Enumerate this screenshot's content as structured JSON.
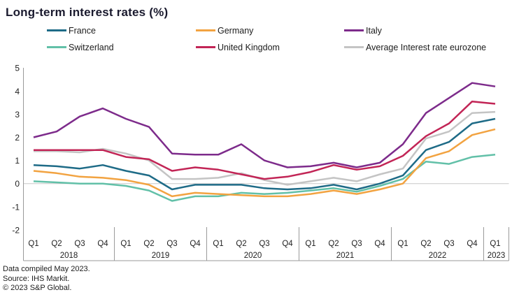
{
  "title": "Long-term interest rates (%)",
  "footer": {
    "line1": "Data compiled May 2023.",
    "line2": "Source: IHS Markit.",
    "line3": "© 2023 S&P Global."
  },
  "chart_data": {
    "type": "line",
    "title": "Long-term interest rates (%)",
    "ylim": [
      -2,
      5
    ],
    "yticks": [
      5,
      4,
      3,
      2,
      1,
      0,
      -1,
      -2
    ],
    "grid": "zero-line-only",
    "legend_position": "top",
    "x_groups": [
      {
        "year": "2018",
        "quarters": [
          "Q1",
          "Q2",
          "Q3",
          "Q4"
        ]
      },
      {
        "year": "2019",
        "quarters": [
          "Q1",
          "Q2",
          "Q3",
          "Q4"
        ]
      },
      {
        "year": "2020",
        "quarters": [
          "Q1",
          "Q2",
          "Q3",
          "Q4"
        ]
      },
      {
        "year": "2021",
        "quarters": [
          "Q1",
          "Q2",
          "Q3",
          "Q4"
        ]
      },
      {
        "year": "2022",
        "quarters": [
          "Q1",
          "Q2",
          "Q3",
          "Q4"
        ]
      },
      {
        "year": "2023",
        "quarters": [
          "Q1"
        ]
      }
    ],
    "categories": [
      "2018 Q1",
      "2018 Q2",
      "2018 Q3",
      "2018 Q4",
      "2019 Q1",
      "2019 Q2",
      "2019 Q3",
      "2019 Q4",
      "2020 Q1",
      "2020 Q2",
      "2020 Q3",
      "2020 Q4",
      "2021 Q1",
      "2021 Q2",
      "2021 Q3",
      "2021 Q4",
      "2022 Q1",
      "2022 Q2",
      "2022 Q3",
      "2022 Q4",
      "2023 Q1"
    ],
    "series": [
      {
        "name": "France",
        "color": "#1E6B87",
        "values": [
          0.8,
          0.75,
          0.65,
          0.8,
          0.55,
          0.35,
          -0.25,
          -0.05,
          -0.05,
          -0.05,
          -0.2,
          -0.25,
          -0.2,
          -0.05,
          -0.25,
          0.0,
          0.35,
          1.45,
          1.8,
          2.6,
          2.8
        ]
      },
      {
        "name": "Germany",
        "color": "#F2A341",
        "values": [
          0.55,
          0.45,
          0.3,
          0.25,
          0.15,
          -0.05,
          -0.55,
          -0.4,
          -0.45,
          -0.5,
          -0.55,
          -0.55,
          -0.45,
          -0.3,
          -0.45,
          -0.25,
          0.0,
          1.1,
          1.4,
          2.1,
          2.35
        ]
      },
      {
        "name": "Italy",
        "color": "#7D2B8B",
        "values": [
          2.0,
          2.25,
          2.9,
          3.25,
          2.8,
          2.45,
          1.3,
          1.25,
          1.25,
          1.7,
          1.0,
          0.7,
          0.75,
          0.9,
          0.7,
          0.9,
          1.7,
          3.05,
          3.7,
          4.35,
          4.2
        ]
      },
      {
        "name": "Switzerland",
        "color": "#62C0A8",
        "values": [
          0.1,
          0.05,
          0.0,
          0.0,
          -0.1,
          -0.3,
          -0.75,
          -0.55,
          -0.55,
          -0.4,
          -0.45,
          -0.4,
          -0.3,
          -0.2,
          -0.35,
          -0.1,
          0.2,
          0.95,
          0.85,
          1.15,
          1.25
        ]
      },
      {
        "name": "United Kingdom",
        "color": "#C22556",
        "values": [
          1.45,
          1.45,
          1.45,
          1.45,
          1.15,
          1.05,
          0.55,
          0.7,
          0.6,
          0.4,
          0.2,
          0.3,
          0.5,
          0.8,
          0.6,
          0.75,
          1.2,
          2.05,
          2.6,
          3.55,
          3.45
        ]
      },
      {
        "name": "Average Interest rate eurozone",
        "color": "#C4C4C4",
        "values": [
          1.4,
          1.4,
          1.35,
          1.5,
          1.3,
          1.0,
          0.2,
          0.2,
          0.25,
          0.45,
          0.15,
          -0.05,
          0.1,
          0.25,
          0.1,
          0.4,
          0.65,
          1.95,
          2.25,
          3.05,
          3.1
        ]
      }
    ],
    "legend_order": [
      "France",
      "Germany",
      "Italy",
      "Switzerland",
      "United Kingdom",
      "Average Interest rate eurozone"
    ],
    "draw_order": [
      "Average Interest rate eurozone",
      "Switzerland",
      "Germany",
      "France",
      "United Kingdom",
      "Italy"
    ],
    "axis_color": "#9a9a9a",
    "zero_line_color": "#c8c8c8",
    "tick_label_color": "#222222"
  }
}
